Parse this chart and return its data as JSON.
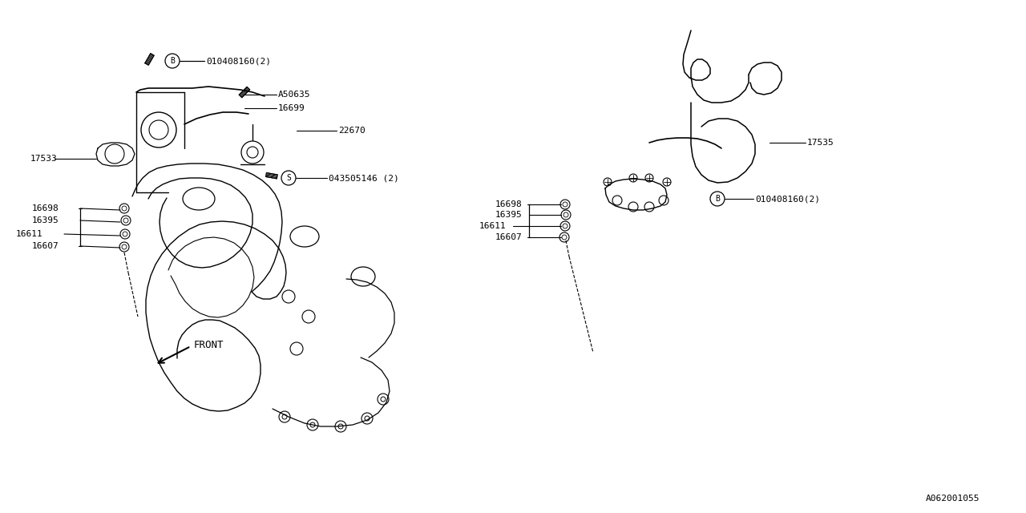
{
  "figsize": [
    12.8,
    6.4
  ],
  "dpi": 100,
  "background_color": "#ffffff",
  "ref_code": "A062001055",
  "labels": {
    "bolt_left_top": "010408160(2)",
    "a50635": "A50635",
    "l16699": "16699",
    "l22670": "22670",
    "l17533": "17533",
    "l16698_left": "16698",
    "l16395_left": "16395",
    "l16611_left": "16611",
    "l16607_left": "16607",
    "s_label": "043505146 (2)",
    "l17535": "17535",
    "l16698_right": "16698",
    "l16395_right": "16395",
    "l16611_right": "16611",
    "l16607_right": "16607",
    "bolt_right": "010408160(2)",
    "front": "FRONT"
  }
}
